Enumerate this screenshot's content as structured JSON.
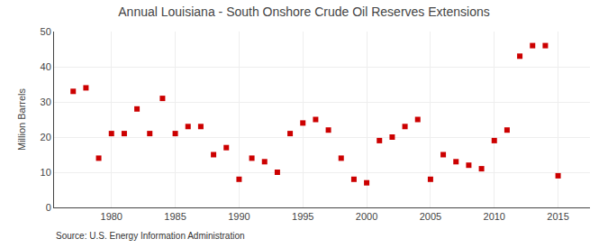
{
  "chart_data": {
    "type": "scatter",
    "title": "Annual Louisiana - South Onshore Crude Oil Reserves Extensions",
    "ylabel": "Million Barrels",
    "annotations": [
      "Source: U.S. Energy Information Administration"
    ],
    "x": [
      1977,
      1978,
      1979,
      1980,
      1981,
      1982,
      1983,
      1984,
      1985,
      1986,
      1987,
      1988,
      1989,
      1990,
      1991,
      1992,
      1993,
      1994,
      1995,
      1996,
      1997,
      1998,
      1999,
      2000,
      2001,
      2002,
      2003,
      2004,
      2005,
      2006,
      2007,
      2008,
      2009,
      2010,
      2011,
      2012,
      2013,
      2014,
      2015
    ],
    "values": [
      33,
      34,
      14,
      21,
      21,
      28,
      21,
      31,
      21,
      23,
      23,
      15,
      17,
      8,
      14,
      13,
      10,
      21,
      24,
      25,
      22,
      14,
      8,
      7,
      19,
      20,
      23,
      25,
      8,
      15,
      13,
      12,
      11,
      19,
      22,
      43,
      46,
      46,
      9
    ],
    "color": "#cc0000",
    "marker": "square",
    "xlim": [
      1975.5,
      2017.5
    ],
    "ylim": [
      0,
      50
    ],
    "xticks": [
      1980,
      1985,
      1990,
      1995,
      2000,
      2005,
      2010,
      2015
    ],
    "yticks": [
      0,
      10,
      20,
      30,
      40,
      50
    ],
    "grid": true
  }
}
